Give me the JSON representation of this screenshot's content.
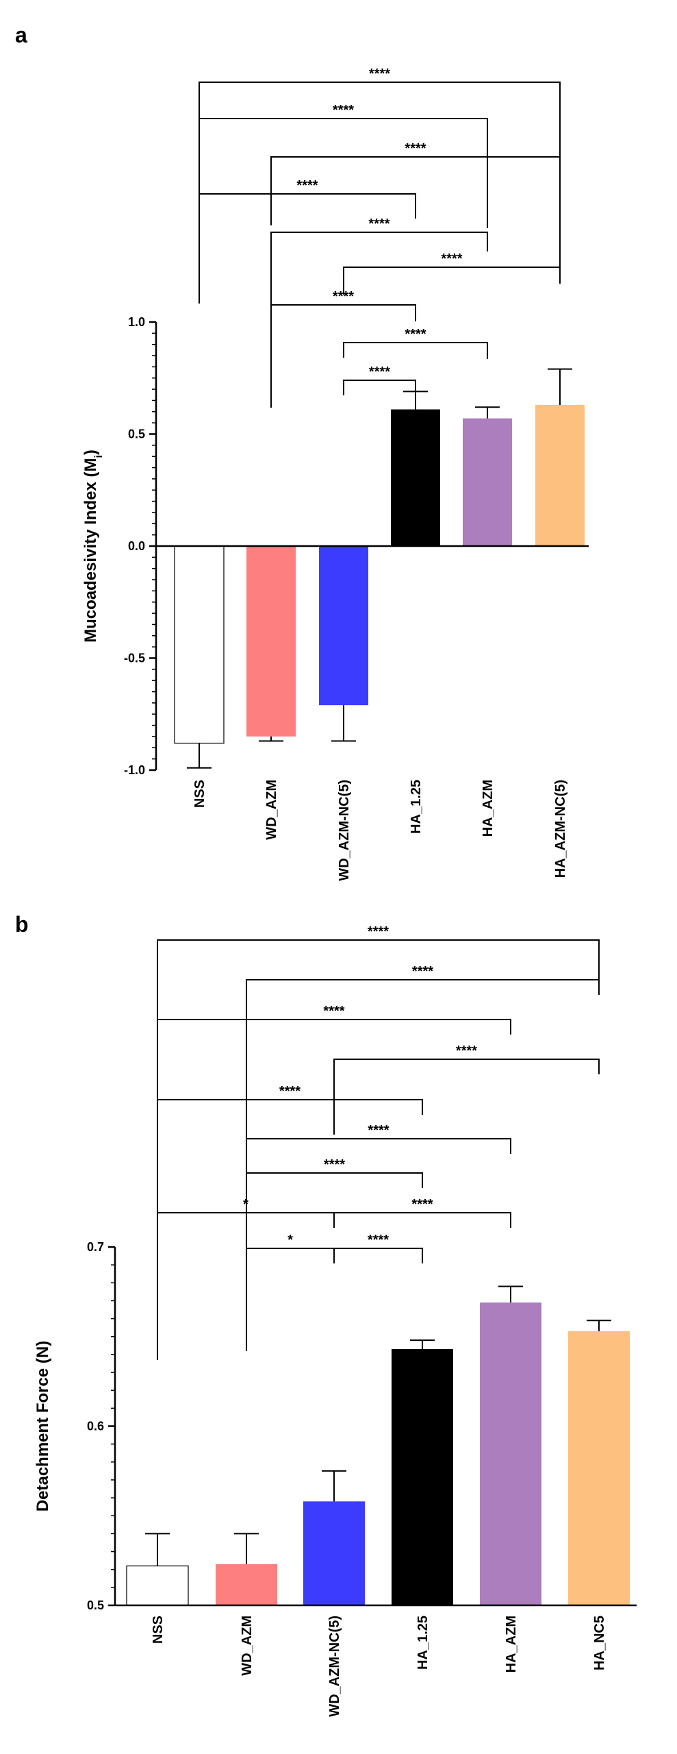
{
  "chart_data": [
    {
      "panel": "a",
      "type": "bar",
      "xlabel": "",
      "ylabel": "Mucoadesivity Index (M",
      "ylabel_subscript": "i",
      "ylabel_suffix": ")",
      "ylim": [
        -1.0,
        1.0
      ],
      "yticks": [
        -1.0,
        -0.5,
        0.0,
        0.5,
        1.0
      ],
      "ytick_labels": [
        "-1.0",
        "-0.5",
        "0.0",
        "0.5",
        "1.0"
      ],
      "categories": [
        "NSS",
        "WD_AZM",
        "WD_AZM-NC(5)",
        "HA_1.25",
        "HA_AZM",
        "HA_AZM-NC(5)"
      ],
      "values": [
        -0.88,
        -0.85,
        -0.71,
        0.61,
        0.57,
        0.63
      ],
      "errors": [
        0.11,
        0.02,
        0.16,
        0.08,
        0.05,
        0.16
      ],
      "colors": [
        "#ffffff",
        "#fe7f80",
        "#3c3cfe",
        "#000000",
        "#ac7ebd",
        "#fdc07e"
      ],
      "significance": [
        {
          "from": 0,
          "to": 5,
          "label": "****"
        },
        {
          "from": 0,
          "to": 4,
          "label": "****"
        },
        {
          "from": 1,
          "to": 5,
          "label": "****"
        },
        {
          "from": 0,
          "to": 3,
          "label": "****"
        },
        {
          "from": 1,
          "to": 4,
          "label": "****"
        },
        {
          "from": 2,
          "to": 5,
          "label": "****"
        },
        {
          "from": 1,
          "to": 3,
          "label": "****"
        },
        {
          "from": 2,
          "to": 4,
          "label": "****"
        },
        {
          "from": 2,
          "to": 3,
          "label": "****"
        }
      ]
    },
    {
      "panel": "b",
      "type": "bar",
      "xlabel": "",
      "ylabel": "Detachment Force (N)",
      "ylim": [
        0.5,
        0.7
      ],
      "yticks": [
        0.5,
        0.6,
        0.7
      ],
      "ytick_labels": [
        "0.5",
        "0.6",
        "0.7"
      ],
      "categories": [
        "NSS",
        "WD_AZM",
        "WD_AZM-NC(5)",
        "HA_1.25",
        "HA_AZM",
        "HA_NC5"
      ],
      "values": [
        0.522,
        0.523,
        0.558,
        0.643,
        0.669,
        0.653
      ],
      "errors": [
        0.018,
        0.017,
        0.017,
        0.005,
        0.009,
        0.006
      ],
      "colors": [
        "#ffffff",
        "#fe7f80",
        "#3c3cfe",
        "#000000",
        "#ac7ebd",
        "#fdc07e"
      ],
      "significance": [
        {
          "from": 0,
          "to": 5,
          "label": "****"
        },
        {
          "from": 1,
          "to": 5,
          "label": "****"
        },
        {
          "from": 0,
          "to": 4,
          "label": "****"
        },
        {
          "from": 2,
          "to": 5,
          "label": "****"
        },
        {
          "from": 0,
          "to": 3,
          "label": "****"
        },
        {
          "from": 1,
          "to": 4,
          "label": "****"
        },
        {
          "from": 1,
          "to": 3,
          "label": "****"
        },
        {
          "from": 0,
          "to": 2,
          "label": "*"
        },
        {
          "from": 2,
          "to": 4,
          "label": "****"
        },
        {
          "from": 1,
          "to": 2,
          "label": "*"
        },
        {
          "from": 2,
          "to": 3,
          "label": "****"
        }
      ]
    }
  ]
}
